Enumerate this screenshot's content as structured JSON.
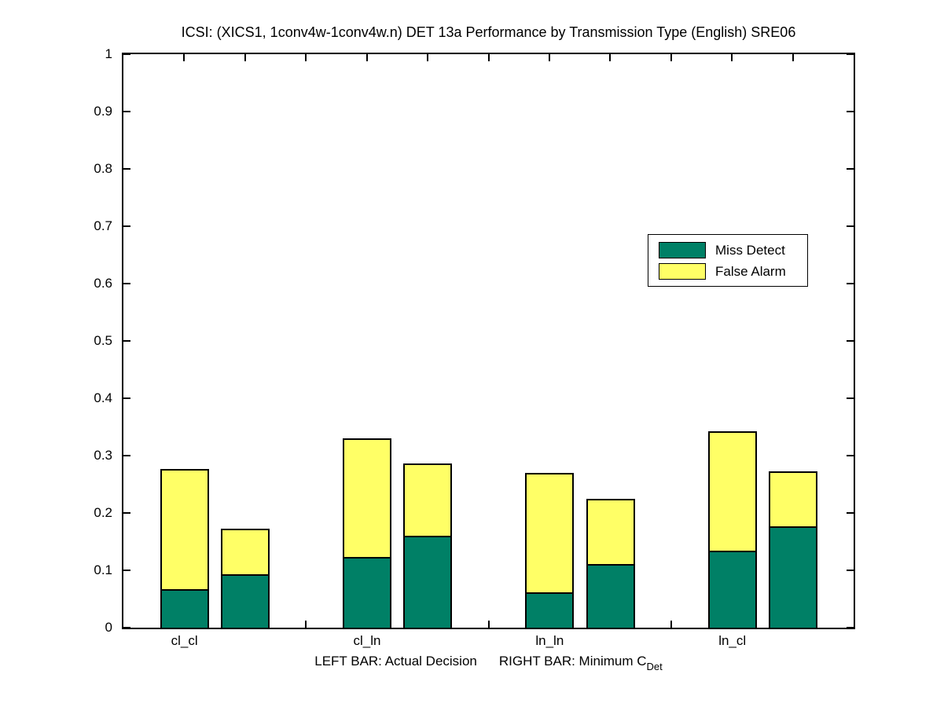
{
  "page": {
    "background": "#ffffff"
  },
  "chart_data": {
    "type": "bar",
    "stacked": true,
    "title": "ICSI: (XICS1, 1conv4w-1conv4w.n) DET 13a Performance by Transmission Type (English) SRE06",
    "categories": [
      "cl_cl",
      "cl_ln",
      "ln_ln",
      "ln_cl"
    ],
    "bar_meaning": {
      "left_bar": "Actual Decision",
      "right_bar": "Minimum CDet"
    },
    "xlabel_parts": {
      "left": "LEFT BAR: Actual Decision",
      "right": "RIGHT BAR: Minimum C",
      "subscript": "Det"
    },
    "ylim": [
      0,
      1
    ],
    "ytick_labels": [
      "0",
      "0.1",
      "0.2",
      "0.3",
      "0.4",
      "0.5",
      "0.6",
      "0.7",
      "0.8",
      "0.9",
      "1"
    ],
    "grid": false,
    "legend": {
      "position": "upper right",
      "entries": [
        {
          "label": "Miss Detect",
          "color": "#008066"
        },
        {
          "label": "False Alarm",
          "color": "#FFFF66"
        }
      ]
    },
    "groups": [
      {
        "category": "cl_cl",
        "actual_decision": {
          "miss_detect": 0.065,
          "false_alarm": 0.212,
          "total": 0.277
        },
        "minimum_cdet": {
          "miss_detect": 0.091,
          "false_alarm": 0.082,
          "total": 0.173
        }
      },
      {
        "category": "cl_ln",
        "actual_decision": {
          "miss_detect": 0.12,
          "false_alarm": 0.21,
          "total": 0.33
        },
        "minimum_cdet": {
          "miss_detect": 0.158,
          "false_alarm": 0.128,
          "total": 0.286
        }
      },
      {
        "category": "ln_ln",
        "actual_decision": {
          "miss_detect": 0.059,
          "false_alarm": 0.211,
          "total": 0.27
        },
        "minimum_cdet": {
          "miss_detect": 0.108,
          "false_alarm": 0.116,
          "total": 0.224
        }
      },
      {
        "category": "ln_cl",
        "actual_decision": {
          "miss_detect": 0.132,
          "false_alarm": 0.211,
          "total": 0.343
        },
        "minimum_cdet": {
          "miss_detect": 0.174,
          "false_alarm": 0.099,
          "total": 0.273
        }
      }
    ]
  }
}
